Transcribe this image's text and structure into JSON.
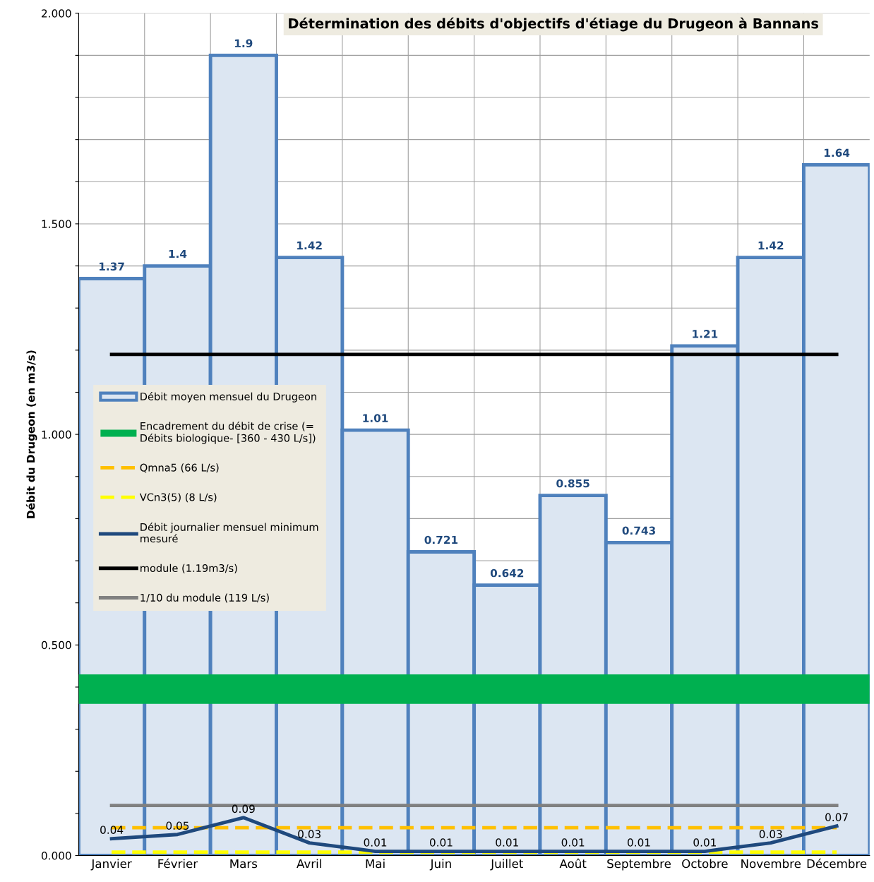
{
  "chart_data": {
    "type": "bar",
    "title": "Détermination des débits d'objectifs d'étiage du Drugeon à Bannans",
    "ylabel": "Débit du Drugeon (en m3/s)",
    "categories": [
      "Janvier",
      "Février",
      "Mars",
      "Avril",
      "Mai",
      "Juin",
      "Juillet",
      "Août",
      "Septembre",
      "Octobre",
      "Novembre",
      "Décembre"
    ],
    "series": [
      {
        "name": "Débit moyen mensuel du Drugeon",
        "color": "#4f81bd",
        "values": [
          1.37,
          1.4,
          1.9,
          1.42,
          1.01,
          0.721,
          0.642,
          0.855,
          0.743,
          1.21,
          1.42,
          1.64
        ]
      },
      {
        "name": "Qmna5 (66 L/s)",
        "type": "line",
        "color": "#ffc000",
        "line_style": "dashed",
        "data_labels": false,
        "values": [
          0.066,
          0.066,
          0.066,
          0.066,
          0.066,
          0.066,
          0.066,
          0.066,
          0.066,
          0.066,
          0.066,
          0.066
        ]
      },
      {
        "name": "VCn3(5) (8 L/s)",
        "type": "line",
        "color": "#ffff00",
        "line_style": "dashed",
        "data_labels": false,
        "values": [
          0.008,
          0.008,
          0.008,
          0.008,
          0.008,
          0.008,
          0.008,
          0.008,
          0.008,
          0.008,
          0.008,
          0.008
        ]
      },
      {
        "name": "Débit journalier mensuel minimum\nmesuré",
        "type": "line",
        "color": "#1f497d",
        "line_style": "solid",
        "values": [
          0.04,
          0.05,
          0.09,
          0.03,
          0.01,
          0.01,
          0.01,
          0.01,
          0.01,
          0.01,
          0.03,
          0.07
        ]
      },
      {
        "name": "module (1.19m3/s)",
        "type": "line",
        "color": "#000000",
        "line_style": "solid",
        "data_labels": false,
        "values": [
          1.19,
          1.19,
          1.19,
          1.19,
          1.19,
          1.19,
          1.19,
          1.19,
          1.19,
          1.19,
          1.19,
          1.19
        ]
      },
      {
        "name": "1/10 du module (119 L/s)",
        "type": "line",
        "color": "#808080",
        "line_style": "solid",
        "data_labels": false,
        "values": [
          0.119,
          0.119,
          0.119,
          0.119,
          0.119,
          0.119,
          0.119,
          0.119,
          0.119,
          0.119,
          0.119,
          0.119
        ]
      }
    ],
    "bands": [
      {
        "axis": "y",
        "from": 0.36,
        "to": 0.43,
        "label": "Encadrement du débit de crise (=\nDébits biologique- [360 - 430 L/s])",
        "color": "#00b050"
      }
    ],
    "ylim": [
      0,
      2.0
    ],
    "yticks": [
      {
        "value": 0,
        "label": "0.000"
      },
      {
        "value": 0.1,
        "label": null
      },
      {
        "value": 0.2,
        "label": null
      },
      {
        "value": 0.3,
        "label": null
      },
      {
        "value": 0.4,
        "label": null
      },
      {
        "value": 0.5,
        "label": "0.500"
      },
      {
        "value": 0.6,
        "label": null
      },
      {
        "value": 0.7,
        "label": null
      },
      {
        "value": 0.8,
        "label": null
      },
      {
        "value": 0.9,
        "label": null
      },
      {
        "value": 1.0,
        "label": "1.000"
      },
      {
        "value": 1.1,
        "label": null
      },
      {
        "value": 1.2,
        "label": null
      },
      {
        "value": 1.3,
        "label": null
      },
      {
        "value": 1.4,
        "label": null
      },
      {
        "value": 1.5,
        "label": "1.500"
      },
      {
        "value": 1.6,
        "label": null
      },
      {
        "value": 1.7,
        "label": null
      },
      {
        "value": 1.8,
        "label": null
      },
      {
        "value": 1.9,
        "label": null
      },
      {
        "value": 2.0,
        "label": "2.000"
      }
    ],
    "grid": true,
    "legend": "left",
    "data_labels": true
  }
}
